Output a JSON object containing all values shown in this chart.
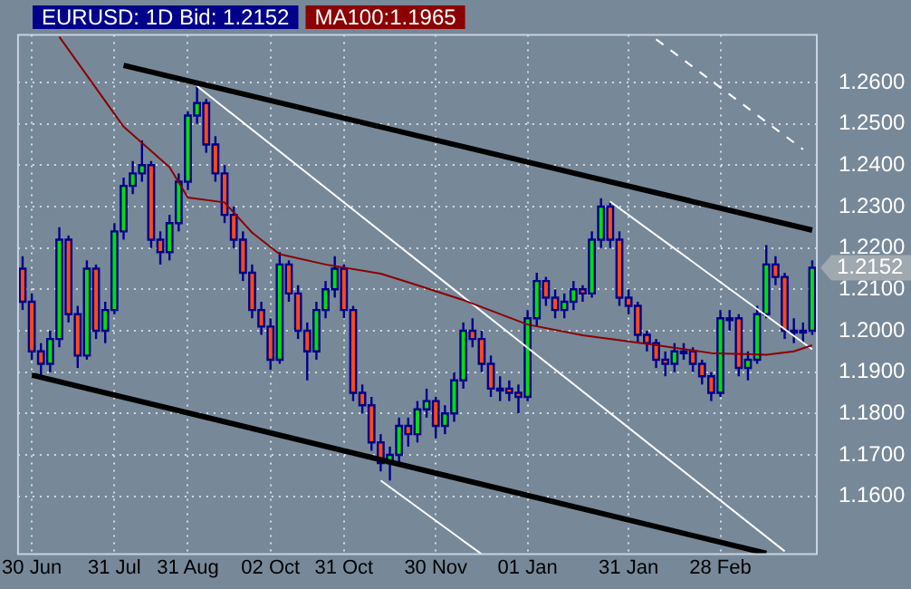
{
  "chart_data": {
    "type": "candlestick",
    "title": "EURUSD: 1D Bid: 1.2152",
    "categories": [
      null,
      "30 Jun",
      null,
      null,
      null,
      null,
      null,
      null,
      null,
      null,
      "31 Jul",
      null,
      null,
      null,
      null,
      null,
      null,
      null,
      "31 Aug",
      null,
      null,
      null,
      null,
      null,
      null,
      null,
      null,
      "02 Oct",
      null,
      null,
      null,
      null,
      null,
      null,
      null,
      "31 Oct",
      null,
      null,
      null,
      null,
      null,
      null,
      null,
      null,
      null,
      "30 Nov",
      null,
      null,
      null,
      null,
      null,
      null,
      null,
      null,
      null,
      "01 Jan",
      null,
      null,
      null,
      null,
      null,
      null,
      null,
      null,
      null,
      null,
      "31 Jan",
      null,
      null,
      null,
      null,
      null,
      null,
      null,
      null,
      null,
      "28 Feb",
      null,
      null,
      null,
      null,
      null,
      null,
      null,
      null,
      null,
      null
    ],
    "ohlc": [
      [
        1.215,
        1.218,
        1.205,
        1.207
      ],
      [
        1.207,
        1.209,
        1.193,
        1.195
      ],
      [
        1.195,
        1.197,
        1.1886,
        1.192
      ],
      [
        1.192,
        1.2,
        1.19,
        1.198
      ],
      [
        1.198,
        1.225,
        1.196,
        1.222
      ],
      [
        1.222,
        1.223,
        1.202,
        1.204
      ],
      [
        1.204,
        1.206,
        1.191,
        1.194
      ],
      [
        1.194,
        1.217,
        1.193,
        1.215
      ],
      [
        1.215,
        1.216,
        1.198,
        1.2
      ],
      [
        1.2,
        1.207,
        1.197,
        1.205
      ],
      [
        1.205,
        1.226,
        1.204,
        1.224
      ],
      [
        1.224,
        1.237,
        1.222,
        1.235
      ],
      [
        1.235,
        1.241,
        1.233,
        1.238
      ],
      [
        1.238,
        1.246,
        1.236,
        1.24
      ],
      [
        1.24,
        1.241,
        1.22,
        1.222
      ],
      [
        1.222,
        1.224,
        1.216,
        1.219
      ],
      [
        1.219,
        1.228,
        1.217,
        1.226
      ],
      [
        1.226,
        1.238,
        1.224,
        1.236
      ],
      [
        1.236,
        1.253,
        1.234,
        1.252
      ],
      [
        1.252,
        1.259,
        1.25,
        1.255
      ],
      [
        1.255,
        1.256,
        1.243,
        1.245
      ],
      [
        1.245,
        1.247,
        1.236,
        1.238
      ],
      [
        1.238,
        1.24,
        1.226,
        1.228
      ],
      [
        1.228,
        1.23,
        1.22,
        1.222
      ],
      [
        1.222,
        1.224,
        1.212,
        1.214
      ],
      [
        1.214,
        1.216,
        1.203,
        1.205
      ],
      [
        1.205,
        1.207,
        1.199,
        1.201
      ],
      [
        1.201,
        1.203,
        1.1905,
        1.193
      ],
      [
        1.193,
        1.219,
        1.192,
        1.216
      ],
      [
        1.216,
        1.217,
        1.207,
        1.209
      ],
      [
        1.209,
        1.211,
        1.198,
        1.2
      ],
      [
        1.2,
        1.202,
        1.188,
        1.195
      ],
      [
        1.195,
        1.207,
        1.193,
        1.205
      ],
      [
        1.205,
        1.212,
        1.203,
        1.21
      ],
      [
        1.21,
        1.218,
        1.208,
        1.215
      ],
      [
        1.215,
        1.216,
        1.203,
        1.205
      ],
      [
        1.205,
        1.206,
        1.183,
        1.185
      ],
      [
        1.185,
        1.187,
        1.18,
        1.182
      ],
      [
        1.182,
        1.184,
        1.171,
        1.173
      ],
      [
        1.173,
        1.175,
        1.166,
        1.168
      ],
      [
        1.168,
        1.172,
        1.1638,
        1.17
      ],
      [
        1.17,
        1.179,
        1.168,
        1.177
      ],
      [
        1.177,
        1.179,
        1.172,
        1.175
      ],
      [
        1.175,
        1.183,
        1.173,
        1.181
      ],
      [
        1.181,
        1.186,
        1.179,
        1.183
      ],
      [
        1.183,
        1.184,
        1.174,
        1.177
      ],
      [
        1.177,
        1.182,
        1.175,
        1.18
      ],
      [
        1.18,
        1.19,
        1.178,
        1.188
      ],
      [
        1.188,
        1.202,
        1.186,
        1.2
      ],
      [
        1.2,
        1.203,
        1.196,
        1.198
      ],
      [
        1.198,
        1.2,
        1.19,
        1.192
      ],
      [
        1.192,
        1.194,
        1.184,
        1.186
      ],
      [
        1.186,
        1.189,
        1.183,
        1.186
      ],
      [
        1.186,
        1.188,
        1.183,
        1.185
      ],
      [
        1.185,
        1.187,
        1.18,
        1.184
      ],
      [
        1.184,
        1.205,
        1.183,
        1.203
      ],
      [
        1.203,
        1.214,
        1.201,
        1.212
      ],
      [
        1.212,
        1.213,
        1.206,
        1.208
      ],
      [
        1.208,
        1.21,
        1.203,
        1.205
      ],
      [
        1.205,
        1.209,
        1.203,
        1.207
      ],
      [
        1.207,
        1.212,
        1.205,
        1.21
      ],
      [
        1.21,
        1.211,
        1.207,
        1.209
      ],
      [
        1.209,
        1.224,
        1.208,
        1.222
      ],
      [
        1.222,
        1.232,
        1.22,
        1.23
      ],
      [
        1.23,
        1.231,
        1.22,
        1.222
      ],
      [
        1.222,
        1.224,
        1.206,
        1.208
      ],
      [
        1.208,
        1.21,
        1.204,
        1.206
      ],
      [
        1.206,
        1.207,
        1.197,
        1.199
      ],
      [
        1.199,
        1.2,
        1.195,
        1.197
      ],
      [
        1.197,
        1.198,
        1.191,
        1.193
      ],
      [
        1.193,
        1.195,
        1.189,
        1.192
      ],
      [
        1.192,
        1.197,
        1.19,
        1.195
      ],
      [
        1.195,
        1.197,
        1.193,
        1.195
      ],
      [
        1.195,
        1.196,
        1.19,
        1.192
      ],
      [
        1.192,
        1.193,
        1.187,
        1.189
      ],
      [
        1.189,
        1.19,
        1.183,
        1.185
      ],
      [
        1.185,
        1.205,
        1.184,
        1.203
      ],
      [
        1.203,
        1.205,
        1.2,
        1.203
      ],
      [
        1.203,
        1.204,
        1.189,
        1.191
      ],
      [
        1.191,
        1.195,
        1.188,
        1.193
      ],
      [
        1.193,
        1.206,
        1.192,
        1.204
      ],
      [
        1.204,
        1.2207,
        1.203,
        1.216
      ],
      [
        1.216,
        1.218,
        1.211,
        1.213
      ],
      [
        1.213,
        1.214,
        1.198,
        1.2
      ],
      [
        1.2,
        1.203,
        1.197,
        1.2
      ],
      [
        1.2,
        1.202,
        1.197,
        1.2
      ],
      [
        1.2,
        1.217,
        1.199,
        1.2152
      ]
    ],
    "series": [
      {
        "type": "line",
        "name": "MA100:1.1965",
        "color": "#8b0000",
        "values": [
          null,
          null,
          null,
          null,
          1.271,
          null,
          null,
          null,
          null,
          null,
          null,
          1.2493,
          null,
          null,
          null,
          null,
          1.2395,
          null,
          1.2322,
          null,
          null,
          null,
          1.231,
          null,
          null,
          1.2237,
          null,
          null,
          1.2185,
          null,
          null,
          null,
          null,
          1.216,
          null,
          null,
          null,
          null,
          null,
          1.2138,
          null,
          null,
          1.2117,
          null,
          null,
          null,
          null,
          null,
          1.2074,
          null,
          null,
          null,
          null,
          null,
          null,
          1.2015,
          null,
          null,
          null,
          null,
          null,
          1.1989,
          null,
          null,
          null,
          null,
          null,
          null,
          1.1968,
          null,
          null,
          null,
          null,
          null,
          null,
          1.1946,
          null,
          null,
          null,
          null,
          null,
          1.1942,
          null,
          null,
          1.195,
          null,
          1.1965
        ]
      },
      {
        "type": "line",
        "color": "#000000",
        "values": [
          null,
          null,
          null,
          null,
          null,
          null,
          null,
          null,
          null,
          null,
          null,
          1.2641,
          null,
          null,
          null,
          null,
          null,
          null,
          null,
          null,
          null,
          null,
          null,
          null,
          null,
          null,
          null,
          null,
          null,
          null,
          null,
          null,
          null,
          null,
          null,
          null,
          null,
          null,
          null,
          null,
          null,
          null,
          null,
          null,
          null,
          null,
          null,
          null,
          null,
          null,
          null,
          null,
          null,
          null,
          null,
          null,
          null,
          null,
          null,
          null,
          null,
          null,
          null,
          null,
          null,
          null,
          null,
          null,
          null,
          null,
          null,
          null,
          null,
          null,
          null,
          null,
          null,
          null,
          null,
          null,
          null,
          null,
          null,
          null,
          null,
          null,
          1.2243
        ]
      },
      {
        "type": "line",
        "color": "#000000",
        "values": [
          null,
          1.1893,
          null,
          null,
          null,
          null,
          null,
          null,
          null,
          null,
          null,
          null,
          null,
          null,
          null,
          null,
          null,
          null,
          null,
          null,
          null,
          null,
          null,
          null,
          null,
          null,
          null,
          null,
          null,
          null,
          null,
          null,
          null,
          null,
          null,
          null,
          null,
          null,
          null,
          null,
          null,
          null,
          null,
          null,
          null,
          null,
          null,
          null,
          null,
          null,
          null,
          null,
          null,
          null,
          null,
          null,
          null,
          null,
          null,
          null,
          null,
          null,
          null,
          null,
          null,
          null,
          null,
          null,
          null,
          null,
          null,
          null,
          null,
          null,
          null,
          null,
          null,
          null,
          null,
          null,
          null,
          1.1462,
          null,
          null,
          null,
          null,
          null
        ]
      },
      {
        "type": "line",
        "color": "#ffffff",
        "values": [
          null,
          null,
          null,
          null,
          null,
          null,
          null,
          null,
          null,
          null,
          null,
          null,
          null,
          null,
          null,
          null,
          null,
          null,
          null,
          1.2591,
          null,
          null,
          null,
          null,
          null,
          null,
          null,
          null,
          null,
          null,
          null,
          null,
          null,
          null,
          null,
          null,
          null,
          null,
          null,
          null,
          null,
          null,
          null,
          null,
          null,
          null,
          null,
          null,
          null,
          null,
          null,
          null,
          null,
          null,
          null,
          null,
          null,
          null,
          null,
          null,
          null,
          null,
          null,
          null,
          null,
          null,
          null,
          null,
          null,
          null,
          null,
          null,
          null,
          null,
          null,
          null,
          null,
          null,
          null,
          null,
          null,
          null,
          null,
          1.1467,
          null,
          null,
          null
        ]
      },
      {
        "type": "line",
        "color": "#ffffff",
        "values": [
          null,
          null,
          null,
          null,
          null,
          null,
          null,
          null,
          null,
          null,
          null,
          null,
          null,
          null,
          null,
          null,
          null,
          null,
          null,
          null,
          null,
          null,
          null,
          null,
          null,
          null,
          null,
          null,
          null,
          null,
          null,
          null,
          null,
          null,
          null,
          null,
          null,
          null,
          null,
          1.1638,
          null,
          null,
          null,
          null,
          null,
          null,
          null,
          null,
          null,
          null,
          1.146,
          null,
          null,
          null,
          null,
          null,
          null,
          null,
          null,
          null,
          null,
          null,
          null,
          null,
          null,
          null,
          null,
          null,
          null,
          null,
          null,
          null,
          null,
          null,
          null,
          null,
          null,
          null,
          null,
          null,
          null,
          null,
          null,
          null,
          null,
          null,
          null
        ]
      },
      {
        "type": "line",
        "color": "#ffffff",
        "values": [
          null,
          null,
          null,
          null,
          null,
          null,
          null,
          null,
          null,
          null,
          null,
          null,
          null,
          null,
          null,
          null,
          null,
          null,
          null,
          null,
          null,
          null,
          null,
          null,
          null,
          null,
          null,
          null,
          null,
          null,
          null,
          null,
          null,
          null,
          null,
          null,
          null,
          null,
          null,
          null,
          null,
          null,
          null,
          null,
          null,
          null,
          null,
          null,
          null,
          null,
          null,
          null,
          null,
          null,
          null,
          null,
          null,
          null,
          null,
          null,
          null,
          null,
          null,
          null,
          1.2312,
          null,
          null,
          null,
          null,
          null,
          null,
          null,
          null,
          null,
          null,
          null,
          null,
          null,
          null,
          null,
          null,
          null,
          null,
          null,
          null,
          null,
          1.1955
        ]
      },
      {
        "type": "line",
        "color": "#ffffff",
        "line_style": "dashed",
        "values": [
          null,
          null,
          null,
          null,
          null,
          null,
          null,
          null,
          null,
          null,
          null,
          null,
          null,
          null,
          null,
          null,
          null,
          null,
          null,
          null,
          null,
          null,
          null,
          null,
          null,
          null,
          null,
          null,
          null,
          null,
          null,
          null,
          null,
          null,
          null,
          null,
          null,
          null,
          null,
          null,
          null,
          null,
          null,
          null,
          null,
          null,
          null,
          null,
          null,
          null,
          null,
          null,
          null,
          null,
          null,
          null,
          null,
          null,
          null,
          null,
          null,
          null,
          null,
          null,
          null,
          null,
          null,
          null,
          null,
          1.2704,
          null,
          null,
          null,
          null,
          null,
          null,
          null,
          null,
          null,
          null,
          null,
          null,
          null,
          null,
          null,
          1.2438,
          null
        ]
      }
    ],
    "ylim": [
      1.146,
      1.2715
    ],
    "yticks": [
      {
        "value": 1.16,
        "label": "1.1600"
      },
      {
        "value": 1.17,
        "label": "1.1700"
      },
      {
        "value": 1.18,
        "label": "1.1800"
      },
      {
        "value": 1.19,
        "label": "1.1900"
      },
      {
        "value": 1.2,
        "label": "1.2000"
      },
      {
        "value": 1.21,
        "label": "1.2100"
      },
      {
        "value": 1.22,
        "label": "1.2200"
      },
      {
        "value": 1.23,
        "label": "1.2300"
      },
      {
        "value": 1.24,
        "label": "1.2400"
      },
      {
        "value": 1.25,
        "label": "1.2500"
      },
      {
        "value": 1.26,
        "label": "1.2600"
      }
    ],
    "annotations": [
      "1.2152"
    ],
    "grid": true,
    "legend": "top left"
  }
}
